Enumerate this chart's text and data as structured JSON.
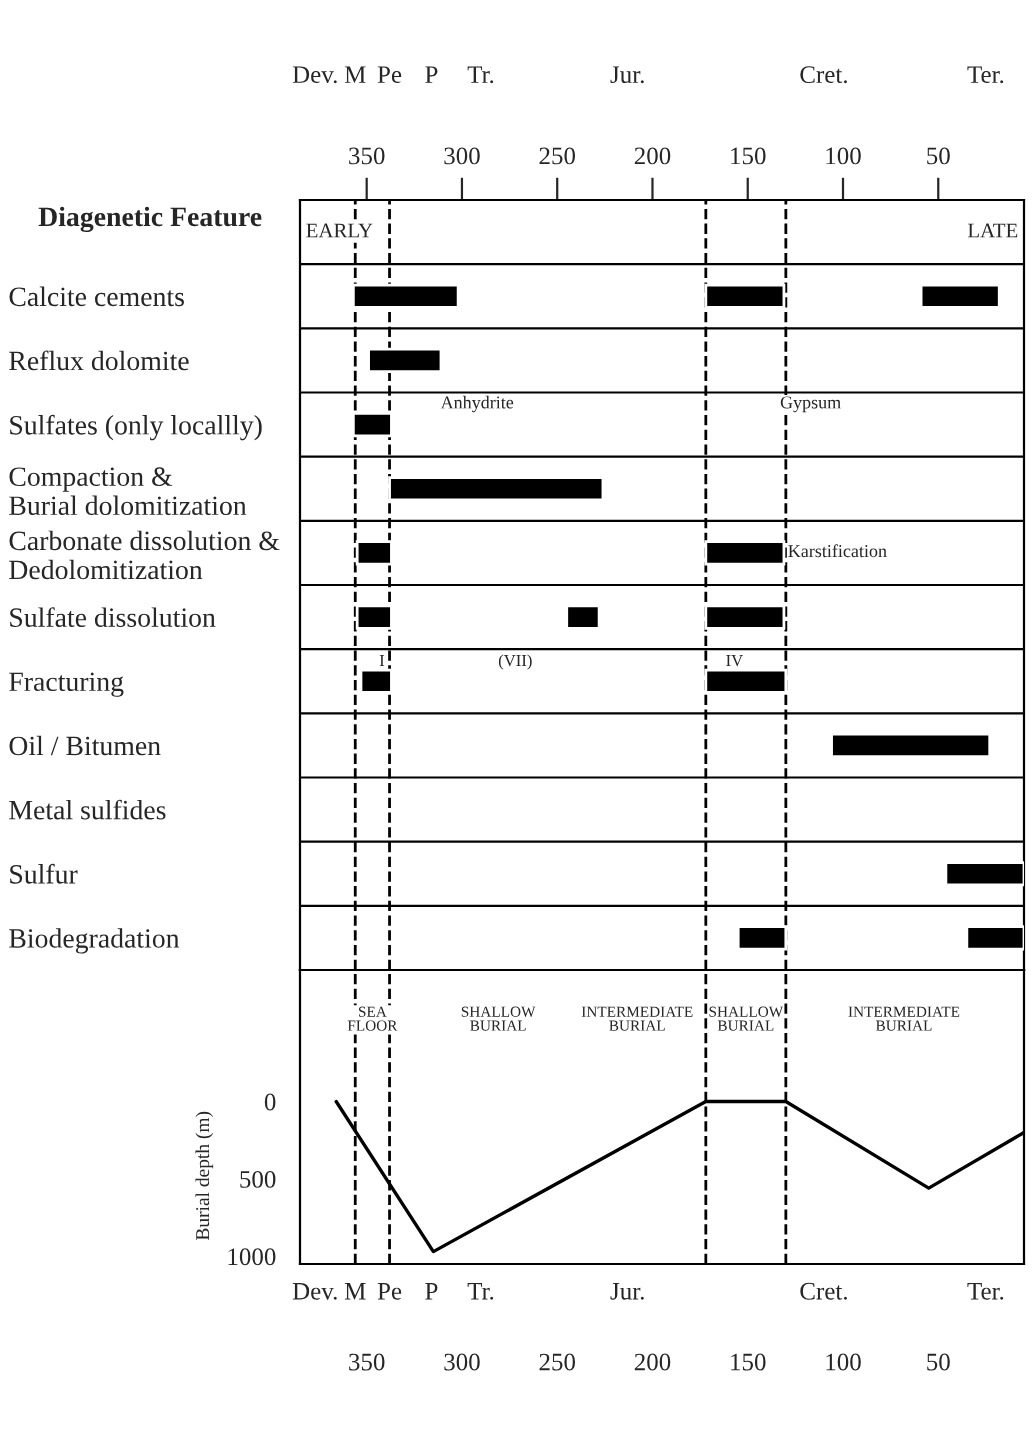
{
  "chart_data": [
    {
      "type": "bar",
      "orientation": "horizontal",
      "ylabel": "Diagenetic Feature",
      "categories": [
        "Calcite cements",
        "Reflux dolomite",
        "Sulfates (only locallly)",
        "Compaction &\nBurial dolomitization",
        "Carbonate dissolution &\nDedolomitization",
        "Sulfate dissolution",
        "Fracturing",
        "Oil / Bitumen",
        "Metal sulfides",
        "Sulfur",
        "Biodegradation"
      ],
      "series": [
        {
          "color": "#000000",
          "base": [
            302,
            311,
            337,
            226,
            337,
            337,
            337,
            23,
            null,
            5,
            130
          ],
          "values": [
            55,
            38,
            20,
            112,
            18,
            18,
            16,
            83,
            null,
            41,
            25
          ]
        },
        {
          "color": "#000000",
          "base": [
            131,
            null,
            null,
            null,
            131,
            228,
            130,
            null,
            null,
            null,
            5
          ],
          "values": [
            41,
            null,
            null,
            null,
            41,
            17,
            42,
            null,
            null,
            null,
            30
          ]
        },
        {
          "color": "#000000",
          "base": [
            18,
            null,
            null,
            null,
            null,
            131,
            null,
            null,
            null,
            null,
            null
          ],
          "values": [
            41,
            null,
            null,
            null,
            null,
            41,
            null,
            null,
            null,
            null,
            null
          ]
        }
      ],
      "xlim": [
        385,
        5
      ],
      "xticks": [
        350,
        300,
        250,
        200,
        150,
        100,
        50
      ],
      "ref_lines": [
        {
          "axis": "x",
          "value": 356,
          "line_style": "dashed"
        },
        {
          "axis": "x",
          "value": 338,
          "line_style": "dashed"
        },
        {
          "axis": "x",
          "value": 172,
          "line_style": "dashed"
        },
        {
          "axis": "x",
          "value": 130,
          "line_style": "dashed"
        }
      ],
      "annotations": [
        "Dev.",
        "M",
        "Pe",
        "P",
        "Tr.",
        "Jur.",
        "Cret.",
        "Ter.",
        "EARLY",
        "LATE",
        "Anhydrite",
        "Gypsum",
        "Karstification",
        "I",
        "(VII)",
        "IV"
      ],
      "grid": false,
      "legend": false
    },
    {
      "type": "line",
      "ylabel": "Burial depth (m)",
      "x": [
        366,
        315,
        172,
        130,
        55,
        5
      ],
      "series": [
        {
          "color": "#000000",
          "values": [
            0,
            970,
            0,
            0,
            560,
            200
          ]
        }
      ],
      "xlim": [
        385,
        5
      ],
      "xticks": [
        350,
        300,
        250,
        200,
        150,
        100,
        50
      ],
      "ylim": [
        1050,
        -850
      ],
      "yticks": [
        0,
        500,
        1000
      ],
      "ref_lines": [
        {
          "axis": "x",
          "value": 356,
          "line_style": "dashed"
        },
        {
          "axis": "x",
          "value": 338,
          "line_style": "dashed"
        },
        {
          "axis": "x",
          "value": 172,
          "line_style": "dashed"
        },
        {
          "axis": "x",
          "value": 130,
          "line_style": "dashed"
        }
      ],
      "annotations": [
        "Dev.",
        "M",
        "Pe",
        "P",
        "Tr.",
        "Jur.",
        "Cret.",
        "Ter.",
        "SEA\nFLOOR",
        "SHALLOW\nBURIAL",
        "INTERMEDIATE\nBURIAL",
        "SHALLOW\nBURIAL",
        "INTERMEDIATE\nBURIAL"
      ],
      "marker": "none",
      "line_style": "solid",
      "grid": false,
      "legend": false
    }
  ]
}
